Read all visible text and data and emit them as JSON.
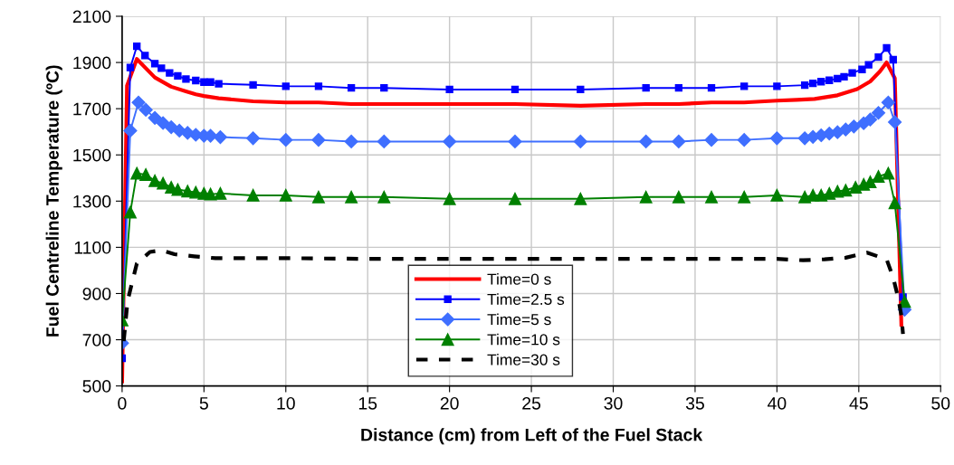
{
  "chart_data": {
    "type": "line",
    "xlabel": "Distance (cm) from Left of the Fuel Stack",
    "ylabel": "Fuel Centreline Temperature (ºC)",
    "xlim": [
      0,
      50
    ],
    "xticks": [
      0,
      5,
      10,
      15,
      20,
      25,
      30,
      35,
      40,
      45,
      50
    ],
    "ylim": [
      500,
      2100
    ],
    "yticks": [
      500,
      700,
      900,
      1100,
      1300,
      1500,
      1700,
      1900,
      2100
    ],
    "grid": true,
    "legend": "lower center",
    "series": [
      {
        "name": "Time=0 s",
        "color": "#ff0000",
        "marker": "none",
        "line_style": "solid",
        "x": [
          0,
          0.3,
          0.9,
          2.0,
          3.0,
          3.9,
          4.5,
          5.0,
          5.9,
          8,
          10,
          12,
          14,
          16,
          20,
          24,
          28,
          32,
          34,
          36,
          38,
          40,
          41.2,
          42.3,
          43.7,
          44.9,
          45.7,
          46.3,
          46.7,
          47.2,
          47.6
        ],
        "values": [
          520,
          1800,
          1915,
          1835,
          1795,
          1775,
          1762,
          1755,
          1745,
          1732,
          1727,
          1727,
          1720,
          1720,
          1720,
          1720,
          1713,
          1720,
          1720,
          1727,
          1727,
          1735,
          1738,
          1742,
          1758,
          1785,
          1818,
          1862,
          1900,
          1832,
          765
        ]
      },
      {
        "name": "Time=2.5 s",
        "color": "#0000ff",
        "marker": "square",
        "line_style": "solid",
        "x": [
          0,
          0.5,
          0.9,
          1.4,
          2.0,
          2.4,
          2.9,
          3.4,
          3.9,
          4.5,
          5.0,
          5.4,
          5.9,
          8,
          10,
          12,
          14,
          16,
          20,
          24,
          28,
          32,
          34,
          36,
          38,
          40,
          41.7,
          42.2,
          42.7,
          43.2,
          43.7,
          44.1,
          44.6,
          45.2,
          45.6,
          46.2,
          46.7,
          47.1,
          47.7
        ],
        "values": [
          620,
          1878,
          1970,
          1930,
          1895,
          1875,
          1855,
          1842,
          1828,
          1822,
          1815,
          1815,
          1808,
          1803,
          1797,
          1797,
          1790,
          1790,
          1783,
          1783,
          1783,
          1790,
          1790,
          1790,
          1797,
          1797,
          1802,
          1810,
          1817,
          1823,
          1830,
          1838,
          1855,
          1870,
          1890,
          1923,
          1963,
          1912,
          885
        ]
      },
      {
        "name": "Time=5 s",
        "color": "#3f6fff",
        "marker": "diamond",
        "line_style": "solid",
        "x": [
          0,
          0.5,
          1.0,
          1.45,
          2.0,
          2.5,
          3.0,
          3.5,
          4.0,
          4.5,
          5.0,
          5.4,
          6.0,
          8,
          10,
          12,
          14,
          16,
          20,
          24,
          28,
          32,
          34,
          36,
          38,
          40,
          41.7,
          42.2,
          42.7,
          43.2,
          43.7,
          44.2,
          44.7,
          45.3,
          45.7,
          46.2,
          46.8,
          47.2,
          47.8
        ],
        "values": [
          685,
          1605,
          1727,
          1695,
          1660,
          1638,
          1620,
          1605,
          1595,
          1587,
          1583,
          1583,
          1577,
          1572,
          1565,
          1565,
          1558,
          1558,
          1558,
          1558,
          1558,
          1558,
          1558,
          1565,
          1565,
          1572,
          1572,
          1578,
          1585,
          1592,
          1598,
          1610,
          1623,
          1637,
          1653,
          1682,
          1727,
          1642,
          830
        ]
      },
      {
        "name": "Time=10 s",
        "color": "#008000",
        "marker": "triangle",
        "line_style": "solid",
        "x": [
          0,
          0.5,
          0.9,
          1.45,
          2.0,
          2.5,
          3.0,
          3.4,
          4.0,
          4.5,
          5.0,
          5.4,
          6.0,
          8,
          10,
          12,
          14,
          16,
          20,
          24,
          28,
          32,
          34,
          36,
          38,
          40,
          41.7,
          42.2,
          42.7,
          43.2,
          43.7,
          44.2,
          44.8,
          45.3,
          45.7,
          46.2,
          46.8,
          47.2,
          47.8
        ],
        "values": [
          785,
          1252,
          1420,
          1415,
          1388,
          1377,
          1360,
          1350,
          1343,
          1338,
          1333,
          1330,
          1333,
          1325,
          1325,
          1318,
          1318,
          1318,
          1310,
          1310,
          1310,
          1318,
          1318,
          1318,
          1318,
          1325,
          1318,
          1325,
          1325,
          1333,
          1342,
          1347,
          1360,
          1372,
          1383,
          1407,
          1420,
          1292,
          865
        ]
      },
      {
        "name": "Time=30 s",
        "color": "#000000",
        "marker": "none",
        "line_style": "dashed",
        "x": [
          0.1,
          0.33,
          0.6,
          0.9,
          1.7,
          2.4,
          3.2,
          4.4,
          5.7,
          8,
          10,
          15,
          20,
          24,
          28,
          32,
          36,
          40,
          41.6,
          42.9,
          44.2,
          45.5,
          46.7,
          47.1,
          47.4,
          47.6,
          47.7
        ],
        "values": [
          694,
          866,
          945,
          1030,
          1080,
          1087,
          1070,
          1061,
          1053,
          1053,
          1053,
          1050,
          1050,
          1050,
          1050,
          1050,
          1050,
          1050,
          1044,
          1048,
          1055,
          1077,
          1048,
          969,
          883,
          805,
          725
        ]
      }
    ]
  }
}
